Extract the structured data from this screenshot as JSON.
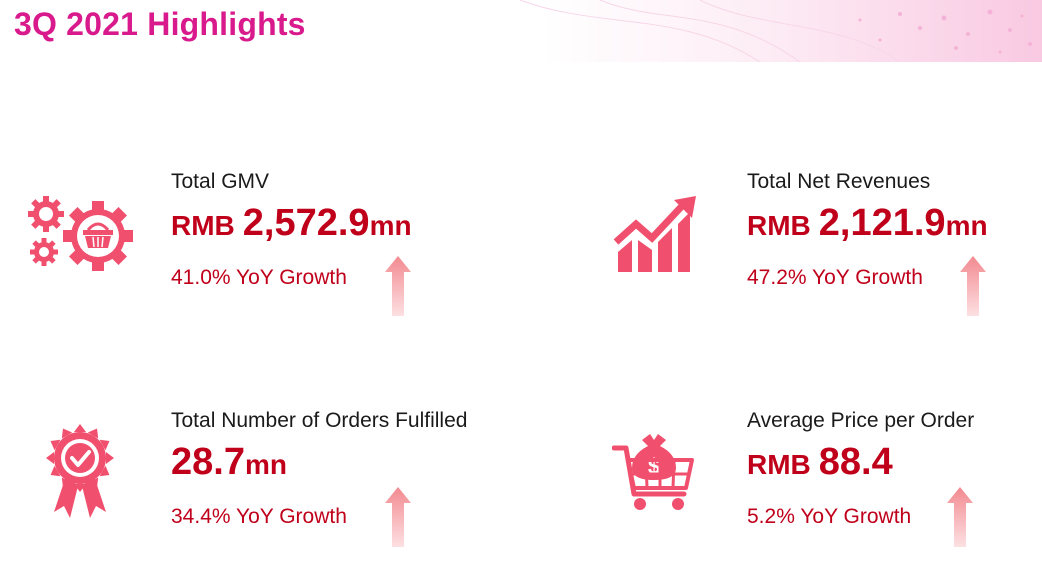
{
  "title": "3Q 2021 Highlights",
  "colors": {
    "title": "#d91a8c",
    "value": "#c0001a",
    "icon": "#f0506e",
    "arrow": "#f5a4a8"
  },
  "kpis": {
    "gmv": {
      "label": "Total GMV",
      "prefix": "RMB",
      "value": "2,572.9",
      "unit": "mn",
      "growth": "41.0% YoY Growth",
      "icon": "gears-basket-icon"
    },
    "revenue": {
      "label": "Total Net Revenues",
      "prefix": "RMB",
      "value": "2,121.9",
      "unit": "mn",
      "growth": "47.2% YoY Growth",
      "icon": "growth-chart-icon"
    },
    "orders": {
      "label": "Total Number of Orders Fulfilled",
      "prefix": "",
      "value": "28.7",
      "unit": "mn",
      "growth": "34.4% YoY Growth",
      "icon": "award-badge-icon"
    },
    "price": {
      "label": "Average Price per Order",
      "prefix": "RMB",
      "value": "88.4",
      "unit": "",
      "growth": "5.2% YoY Growth",
      "icon": "cart-money-icon"
    }
  }
}
